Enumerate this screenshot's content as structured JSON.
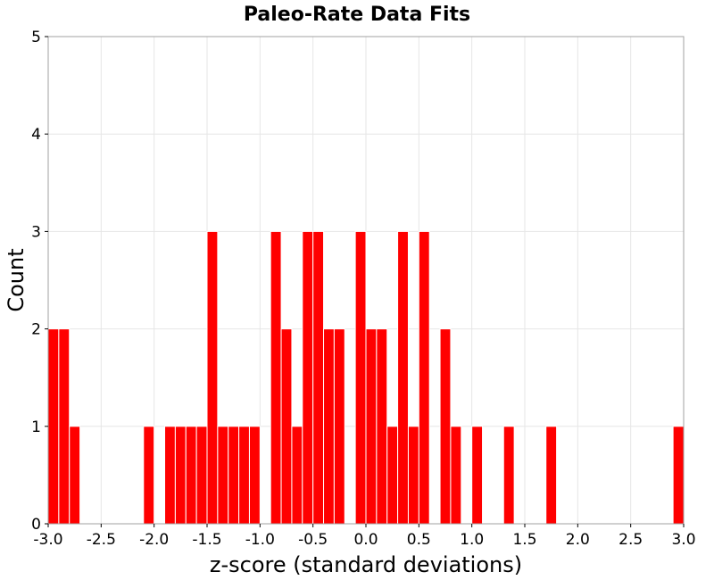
{
  "chart_data": {
    "type": "bar",
    "title": "Paleo-Rate Data Fits",
    "xlabel": "z-score (standard deviations)",
    "ylabel": "Count",
    "xlim": [
      -3.0,
      3.0
    ],
    "ylim": [
      0,
      5
    ],
    "bin_width": 0.1,
    "xticks": [
      "-3.0",
      "-2.5",
      "-2.0",
      "-1.5",
      "-1.0",
      "-0.5",
      "0.0",
      "0.5",
      "1.0",
      "1.5",
      "2.0",
      "2.5",
      "3.0"
    ],
    "yticks": [
      "0",
      "1",
      "2",
      "3",
      "4",
      "5"
    ],
    "grid": true,
    "bar_color": "#ff0000",
    "bins": [
      {
        "x": -3.0,
        "count": 2
      },
      {
        "x": -2.9,
        "count": 2
      },
      {
        "x": -2.8,
        "count": 1
      },
      {
        "x": -2.1,
        "count": 1
      },
      {
        "x": -1.9,
        "count": 1
      },
      {
        "x": -1.8,
        "count": 1
      },
      {
        "x": -1.7,
        "count": 1
      },
      {
        "x": -1.6,
        "count": 1
      },
      {
        "x": -1.5,
        "count": 3
      },
      {
        "x": -1.4,
        "count": 1
      },
      {
        "x": -1.3,
        "count": 1
      },
      {
        "x": -1.2,
        "count": 1
      },
      {
        "x": -1.1,
        "count": 1
      },
      {
        "x": -0.9,
        "count": 3
      },
      {
        "x": -0.8,
        "count": 2
      },
      {
        "x": -0.7,
        "count": 1
      },
      {
        "x": -0.6,
        "count": 3
      },
      {
        "x": -0.5,
        "count": 3
      },
      {
        "x": -0.4,
        "count": 2
      },
      {
        "x": -0.3,
        "count": 2
      },
      {
        "x": -0.1,
        "count": 3
      },
      {
        "x": 0.0,
        "count": 2
      },
      {
        "x": 0.1,
        "count": 2
      },
      {
        "x": 0.2,
        "count": 1
      },
      {
        "x": 0.3,
        "count": 3
      },
      {
        "x": 0.4,
        "count": 1
      },
      {
        "x": 0.5,
        "count": 3
      },
      {
        "x": 0.7,
        "count": 2
      },
      {
        "x": 0.8,
        "count": 1
      },
      {
        "x": 1.0,
        "count": 1
      },
      {
        "x": 1.3,
        "count": 1
      },
      {
        "x": 1.7,
        "count": 1
      },
      {
        "x": 2.9,
        "count": 1
      }
    ]
  }
}
